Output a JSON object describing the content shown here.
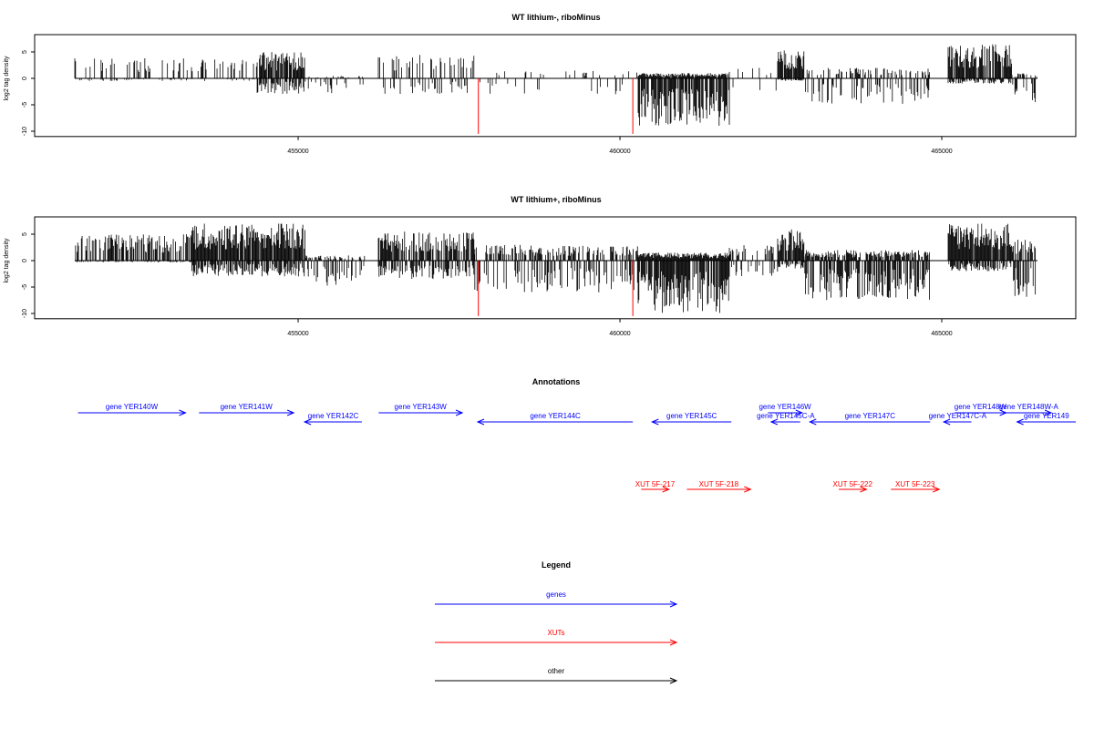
{
  "chart_data": [
    {
      "type": "bar",
      "title": "WT lithium-, riboMinus",
      "ylabel": "log2 tag density",
      "xlim": [
        450906,
        467082
      ],
      "ylim": [
        -11,
        8
      ],
      "xticks": [
        "455000",
        "460000",
        "465000"
      ],
      "xtick_values": [
        455000,
        460000,
        465000
      ],
      "yticks": [
        "5",
        "0",
        "-5",
        "-10"
      ],
      "ytick_values": [
        5,
        0,
        -5,
        -10
      ],
      "segments": [
        [
          451530,
          454363,
          4,
          -0.5,
          0.25
        ],
        [
          454363,
          455113,
          5,
          -3,
          0.8
        ],
        [
          455113,
          456034,
          0.5,
          -3,
          0.15
        ],
        [
          456246,
          457734,
          4.5,
          -3,
          0.3
        ],
        [
          457734,
          460283,
          1.5,
          -3.5,
          0.12
        ],
        [
          460283,
          461700,
          1,
          -9,
          0.95
        ],
        [
          461700,
          462450,
          2,
          -2.5,
          0.1
        ],
        [
          462450,
          462861,
          5.3,
          -0.5,
          0.9
        ],
        [
          462861,
          464816,
          2,
          -5,
          0.35
        ],
        [
          465099,
          466091,
          6.5,
          -1,
          0.85
        ],
        [
          466091,
          466487,
          1,
          -4.5,
          0.5
        ]
      ],
      "markers": [
        {
          "x": 457800,
          "y": -10.5,
          "color": "#ff0000"
        },
        {
          "x": 460200,
          "y": -10.5,
          "color": "#ff0000"
        }
      ]
    },
    {
      "type": "bar",
      "title": "WT lithium+, riboMinus",
      "ylabel": "log2 tag density",
      "xlim": [
        450906,
        467082
      ],
      "ylim": [
        -11,
        8
      ],
      "xticks": [
        "455000",
        "460000",
        "465000"
      ],
      "xtick_values": [
        455000,
        460000,
        465000
      ],
      "yticks": [
        "5",
        "0",
        "-5",
        "-10"
      ],
      "ytick_values": [
        5,
        0,
        -5,
        -10
      ],
      "segments": [
        [
          451530,
          453350,
          5,
          -0.3,
          0.6
        ],
        [
          453350,
          455113,
          7,
          -3,
          0.95
        ],
        [
          455113,
          456034,
          1,
          -5,
          0.5
        ],
        [
          456246,
          457734,
          5.5,
          -3.5,
          0.7
        ],
        [
          457734,
          460283,
          3,
          -6,
          0.5
        ],
        [
          460283,
          461700,
          1.5,
          -10,
          1
        ],
        [
          461700,
          462450,
          3,
          -3,
          0.35
        ],
        [
          462450,
          462861,
          6,
          -1.5,
          0.9
        ],
        [
          462861,
          464816,
          2,
          -7.5,
          0.75
        ],
        [
          465099,
          466091,
          7,
          -2,
          0.95
        ],
        [
          466091,
          466487,
          4,
          -7,
          0.7
        ]
      ],
      "markers": [
        {
          "x": 457800,
          "y": -10.5,
          "color": "#ff0000"
        },
        {
          "x": 460200,
          "y": -10.5,
          "color": "#ff0000"
        }
      ]
    }
  ],
  "annotations": {
    "title": "Annotations",
    "genes": [
      {
        "label": "gene YER140W",
        "start": 451580,
        "end": 453250,
        "strand": "+",
        "row": 0
      },
      {
        "label": "gene YER141W",
        "start": 453460,
        "end": 454930,
        "strand": "+",
        "row": 0
      },
      {
        "label": "gene YER142C",
        "start": 455100,
        "end": 455990,
        "strand": "-",
        "row": 1
      },
      {
        "label": "gene YER143W",
        "start": 456250,
        "end": 457550,
        "strand": "+",
        "row": 0
      },
      {
        "label": "gene YER144C",
        "start": 457790,
        "end": 460200,
        "strand": "-",
        "row": 1
      },
      {
        "label": "gene YER145C",
        "start": 460500,
        "end": 461730,
        "strand": "-",
        "row": 1
      },
      {
        "label": "gene YER146W",
        "start": 462300,
        "end": 462830,
        "strand": "+",
        "row": 0
      },
      {
        "label": "gene YER145C-A",
        "start": 462350,
        "end": 462800,
        "strand": "-",
        "row": 1
      },
      {
        "label": "gene YER147C",
        "start": 462950,
        "end": 464820,
        "strand": "-",
        "row": 1
      },
      {
        "label": "gene YER148W",
        "start": 465200,
        "end": 466000,
        "strand": "+",
        "row": 0
      },
      {
        "label": "gene YER147C-A",
        "start": 465030,
        "end": 465460,
        "strand": "-",
        "row": 1
      },
      {
        "label": "gene YER148W-A",
        "start": 466000,
        "end": 466700,
        "strand": "+",
        "row": 0
      },
      {
        "label": "gene YER149",
        "start": 466170,
        "end": 467082,
        "strand": "-",
        "row": 1
      }
    ],
    "xuts": [
      {
        "label": "XUT 5F-217",
        "start": 460330,
        "end": 460760
      },
      {
        "label": "XUT 5F-218",
        "start": 461040,
        "end": 462030
      },
      {
        "label": "XUT 5F-222",
        "start": 463400,
        "end": 463830
      },
      {
        "label": "XUT 5F-223",
        "start": 464210,
        "end": 464960
      }
    ]
  },
  "legend": {
    "title": "Legend",
    "items": [
      {
        "label": "genes",
        "color": "#0000ff"
      },
      {
        "label": "XUTs",
        "color": "#ff0000"
      },
      {
        "label": "other",
        "color": "#000000"
      }
    ]
  }
}
